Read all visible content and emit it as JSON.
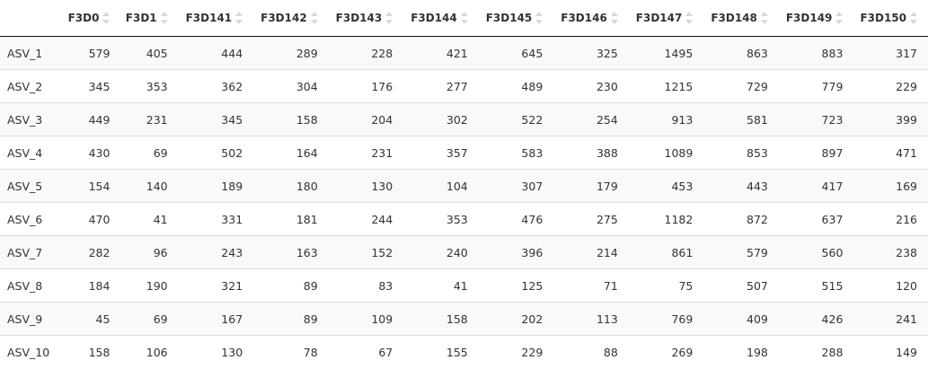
{
  "table": {
    "columns": [
      "F3D0",
      "F3D1",
      "F3D141",
      "F3D142",
      "F3D143",
      "F3D144",
      "F3D145",
      "F3D146",
      "F3D147",
      "F3D148",
      "F3D149",
      "F3D150"
    ],
    "rows": [
      {
        "name": "ASV_1",
        "values": [
          "579",
          "405",
          "444",
          "289",
          "228",
          "421",
          "645",
          "325",
          "1495",
          "863",
          "883",
          "317"
        ]
      },
      {
        "name": "ASV_2",
        "values": [
          "345",
          "353",
          "362",
          "304",
          "176",
          "277",
          "489",
          "230",
          "1215",
          "729",
          "779",
          "229"
        ]
      },
      {
        "name": "ASV_3",
        "values": [
          "449",
          "231",
          "345",
          "158",
          "204",
          "302",
          "522",
          "254",
          "913",
          "581",
          "723",
          "399"
        ]
      },
      {
        "name": "ASV_4",
        "values": [
          "430",
          "69",
          "502",
          "164",
          "231",
          "357",
          "583",
          "388",
          "1089",
          "853",
          "897",
          "471"
        ]
      },
      {
        "name": "ASV_5",
        "values": [
          "154",
          "140",
          "189",
          "180",
          "130",
          "104",
          "307",
          "179",
          "453",
          "443",
          "417",
          "169"
        ]
      },
      {
        "name": "ASV_6",
        "values": [
          "470",
          "41",
          "331",
          "181",
          "244",
          "353",
          "476",
          "275",
          "1182",
          "872",
          "637",
          "216"
        ]
      },
      {
        "name": "ASV_7",
        "values": [
          "282",
          "96",
          "243",
          "163",
          "152",
          "240",
          "396",
          "214",
          "861",
          "579",
          "560",
          "238"
        ]
      },
      {
        "name": "ASV_8",
        "values": [
          "184",
          "190",
          "321",
          "89",
          "83",
          "41",
          "125",
          "71",
          "75",
          "507",
          "515",
          "120"
        ]
      },
      {
        "name": "ASV_9",
        "values": [
          "45",
          "69",
          "167",
          "89",
          "109",
          "158",
          "202",
          "113",
          "769",
          "409",
          "426",
          "241"
        ]
      },
      {
        "name": "ASV_10",
        "values": [
          "158",
          "106",
          "130",
          "78",
          "67",
          "155",
          "229",
          "88",
          "269",
          "198",
          "288",
          "149"
        ]
      }
    ]
  }
}
